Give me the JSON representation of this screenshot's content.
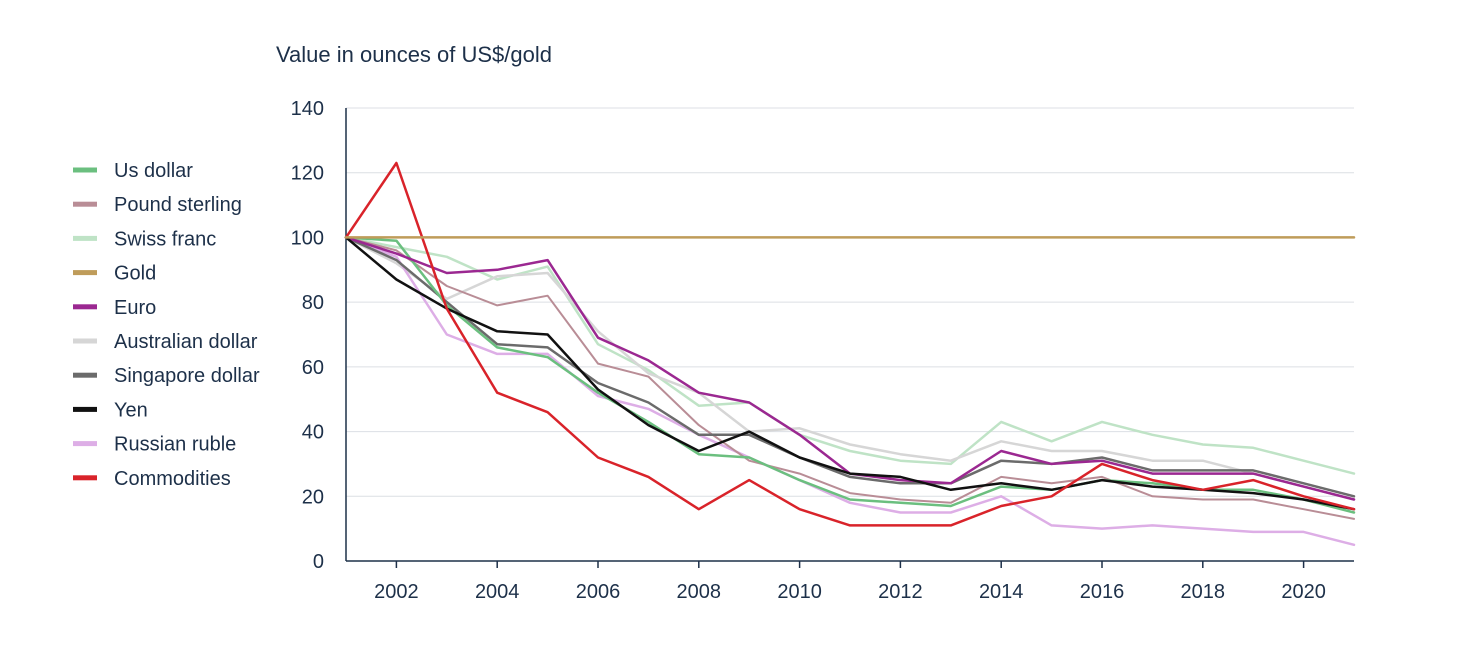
{
  "chart_data": {
    "type": "line",
    "title": "",
    "ylabel": "Value in ounces of US$/gold",
    "xlabel": "",
    "x": [
      2001,
      2002,
      2003,
      2004,
      2005,
      2006,
      2007,
      2008,
      2009,
      2010,
      2011,
      2012,
      2013,
      2014,
      2015,
      2016,
      2017,
      2018,
      2019,
      2020,
      2021
    ],
    "xlim": [
      2001,
      2021
    ],
    "ylim": [
      0,
      140
    ],
    "x_ticks": [
      2002,
      2004,
      2006,
      2008,
      2010,
      2012,
      2014,
      2016,
      2018,
      2020
    ],
    "y_ticks": [
      0,
      20,
      40,
      60,
      80,
      100,
      120,
      140
    ],
    "grid": "horizontal",
    "legend_position": "left",
    "series": [
      {
        "name": "Us dollar",
        "color": "#6bbf7f",
        "width": 2.5,
        "values": [
          100,
          99,
          79,
          66,
          63,
          52,
          43,
          33,
          32,
          25,
          19,
          18,
          17,
          23,
          22,
          25,
          24,
          22,
          22,
          19,
          15
        ]
      },
      {
        "name": "Pound sterling",
        "color": "#b98d96",
        "width": 2,
        "values": [
          100,
          96,
          85,
          79,
          82,
          61,
          57,
          42,
          31,
          27,
          21,
          19,
          18,
          26,
          24,
          26,
          20,
          19,
          19,
          16,
          13
        ]
      },
      {
        "name": "Swiss franc",
        "color": "#bfe3c6",
        "width": 2.5,
        "values": [
          100,
          97,
          94,
          87,
          91,
          67,
          59,
          48,
          49,
          39,
          34,
          31,
          30,
          43,
          37,
          43,
          39,
          36,
          35,
          31,
          27
        ]
      },
      {
        "name": "Gold",
        "color": "#bf9c5a",
        "width": 2.5,
        "values": [
          100,
          100,
          100,
          100,
          100,
          100,
          100,
          100,
          100,
          100,
          100,
          100,
          100,
          100,
          100,
          100,
          100,
          100,
          100,
          100,
          100
        ]
      },
      {
        "name": "Euro",
        "color": "#9b2891",
        "width": 2.5,
        "values": [
          100,
          95,
          89,
          90,
          93,
          69,
          62,
          52,
          49,
          39,
          27,
          25,
          24,
          34,
          30,
          31,
          27,
          27,
          27,
          23,
          19
        ]
      },
      {
        "name": "Australian dollar",
        "color": "#d6d6d6",
        "width": 2.5,
        "values": [
          100,
          92,
          81,
          88,
          89,
          71,
          58,
          52,
          40,
          41,
          36,
          33,
          31,
          37,
          34,
          34,
          31,
          31,
          27,
          23,
          19
        ]
      },
      {
        "name": "Singapore dollar",
        "color": "#6b6b6b",
        "width": 2.5,
        "values": [
          100,
          93,
          80,
          67,
          66,
          55,
          49,
          39,
          39,
          32,
          26,
          24,
          24,
          31,
          30,
          32,
          28,
          28,
          28,
          24,
          20
        ]
      },
      {
        "name": "Yen",
        "color": "#111111",
        "width": 2.5,
        "values": [
          100,
          87,
          78,
          71,
          70,
          53,
          42,
          34,
          40,
          32,
          27,
          26,
          22,
          24,
          22,
          25,
          23,
          22,
          21,
          19,
          16
        ]
      },
      {
        "name": "Russian ruble",
        "color": "#ddaee6",
        "width": 2.5,
        "values": [
          100,
          94,
          70,
          64,
          64,
          51,
          47,
          39,
          32,
          25,
          18,
          15,
          15,
          20,
          11,
          10,
          11,
          10,
          9,
          9,
          5
        ]
      },
      {
        "name": "Commodities",
        "color": "#d9232a",
        "width": 2.5,
        "values": [
          100,
          123,
          78,
          52,
          46,
          32,
          26,
          16,
          25,
          16,
          11,
          11,
          11,
          17,
          20,
          30,
          25,
          22,
          25,
          20,
          16
        ]
      }
    ]
  }
}
